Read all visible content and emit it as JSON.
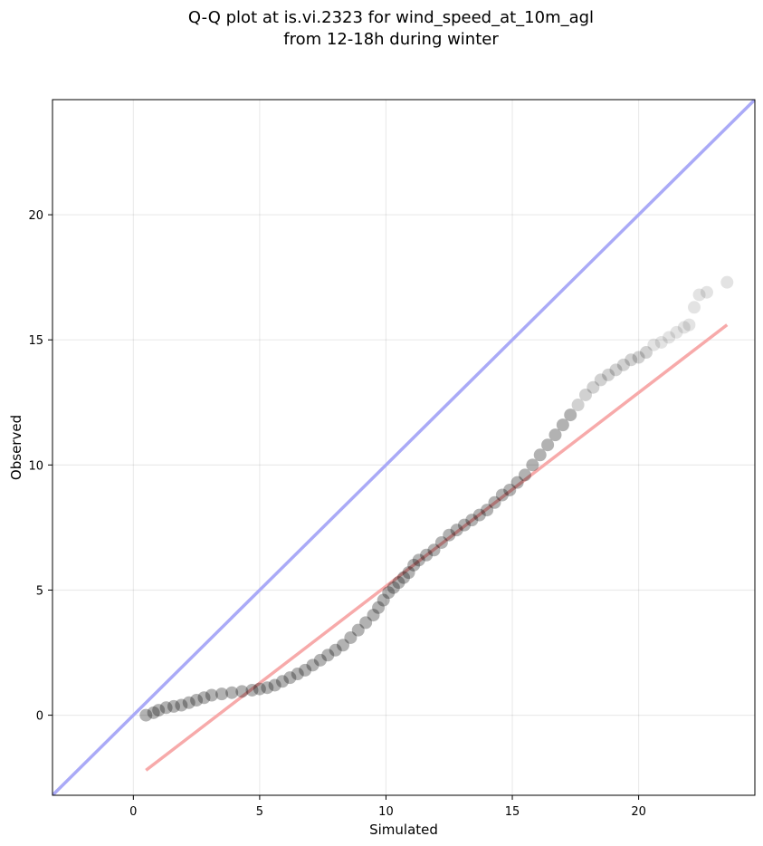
{
  "chart_data": {
    "type": "scatter",
    "title_lines": [
      "Q-Q plot at is.vi.2323 for wind_speed_at_10m_agl",
      "from 12-18h during winter"
    ],
    "xlabel": "Simulated",
    "ylabel": "Observed",
    "xlim": [
      -3.2,
      24.6
    ],
    "ylim": [
      -3.2,
      24.6
    ],
    "xticks": [
      0,
      5,
      10,
      15,
      20
    ],
    "yticks": [
      0,
      5,
      10,
      15,
      20
    ],
    "grid": true,
    "point_color": "#000000",
    "reference_line": {
      "slope": 1,
      "intercept": 0,
      "color": "#aaaaf7"
    },
    "fit_line": {
      "points": [
        [
          0.5,
          -2.2
        ],
        [
          23.5,
          15.6
        ]
      ],
      "color": "#f7aaaa"
    },
    "quantiles": [
      [
        0.5,
        0.0
      ],
      [
        0.8,
        0.1
      ],
      [
        1.0,
        0.2
      ],
      [
        1.3,
        0.3
      ],
      [
        1.6,
        0.35
      ],
      [
        1.9,
        0.4
      ],
      [
        2.2,
        0.5
      ],
      [
        2.5,
        0.6
      ],
      [
        2.8,
        0.7
      ],
      [
        3.1,
        0.8
      ],
      [
        3.5,
        0.85
      ],
      [
        3.9,
        0.9
      ],
      [
        4.3,
        0.95
      ],
      [
        4.7,
        1.0
      ],
      [
        5.0,
        1.05
      ],
      [
        5.3,
        1.1
      ],
      [
        5.6,
        1.2
      ],
      [
        5.9,
        1.35
      ],
      [
        6.2,
        1.5
      ],
      [
        6.5,
        1.65
      ],
      [
        6.8,
        1.8
      ],
      [
        7.1,
        2.0
      ],
      [
        7.4,
        2.2
      ],
      [
        7.7,
        2.4
      ],
      [
        8.0,
        2.6
      ],
      [
        8.3,
        2.8
      ],
      [
        8.6,
        3.1
      ],
      [
        8.9,
        3.4
      ],
      [
        9.2,
        3.7
      ],
      [
        9.5,
        4.0
      ],
      [
        9.7,
        4.3
      ],
      [
        9.9,
        4.6
      ],
      [
        10.1,
        4.9
      ],
      [
        10.3,
        5.1
      ],
      [
        10.5,
        5.3
      ],
      [
        10.7,
        5.5
      ],
      [
        10.9,
        5.7
      ],
      [
        11.1,
        6.0
      ],
      [
        11.3,
        6.2
      ],
      [
        11.6,
        6.4
      ],
      [
        11.9,
        6.6
      ],
      [
        12.2,
        6.9
      ],
      [
        12.5,
        7.2
      ],
      [
        12.8,
        7.4
      ],
      [
        13.1,
        7.6
      ],
      [
        13.4,
        7.8
      ],
      [
        13.7,
        8.0
      ],
      [
        14.0,
        8.2
      ],
      [
        14.3,
        8.5
      ],
      [
        14.6,
        8.8
      ],
      [
        14.9,
        9.0
      ],
      [
        15.2,
        9.3
      ],
      [
        15.5,
        9.6
      ],
      [
        15.8,
        10.0
      ],
      [
        16.1,
        10.4
      ],
      [
        16.4,
        10.8
      ],
      [
        16.7,
        11.2
      ],
      [
        17.0,
        11.6
      ],
      [
        17.3,
        12.0
      ],
      [
        17.6,
        12.4
      ],
      [
        17.9,
        12.8
      ],
      [
        18.2,
        13.1
      ],
      [
        18.5,
        13.4
      ],
      [
        18.8,
        13.6
      ],
      [
        19.1,
        13.8
      ],
      [
        19.4,
        14.0
      ],
      [
        19.7,
        14.2
      ],
      [
        20.0,
        14.3
      ],
      [
        20.3,
        14.5
      ],
      [
        20.6,
        14.8
      ],
      [
        20.9,
        14.9
      ],
      [
        21.2,
        15.1
      ],
      [
        21.5,
        15.3
      ],
      [
        21.8,
        15.5
      ],
      [
        22.0,
        15.6
      ],
      [
        22.2,
        16.3
      ],
      [
        22.4,
        16.8
      ],
      [
        22.7,
        16.9
      ],
      [
        23.5,
        17.3
      ]
    ]
  }
}
